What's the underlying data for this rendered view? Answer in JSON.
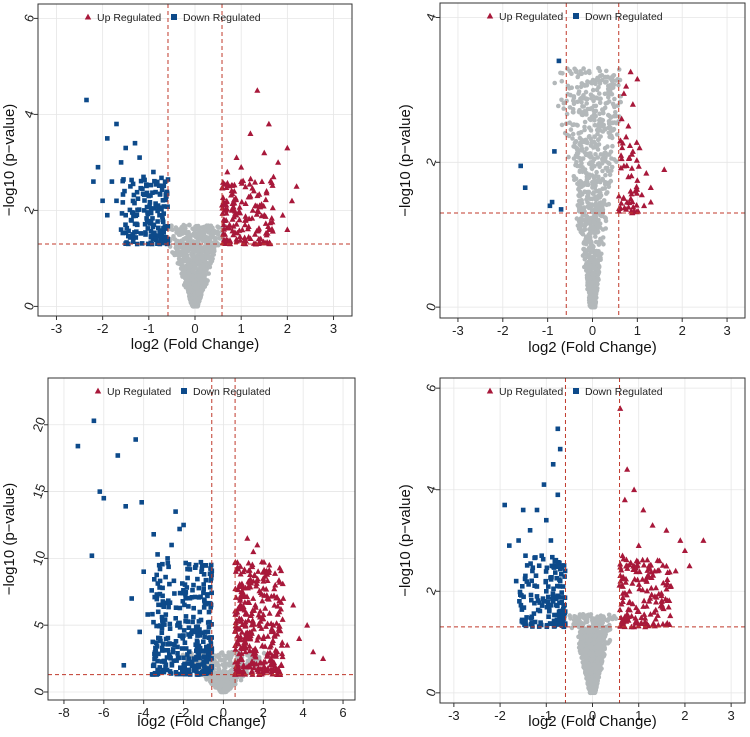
{
  "legend": {
    "up_label": "Up Regulated",
    "down_label": "Down Regulated"
  },
  "colors": {
    "up": "#a8183a",
    "down": "#0d4a8a",
    "ns": "#b3b8ba",
    "threshold": "#c0392b",
    "grid": "#e6e6e6"
  },
  "chart_data": [
    {
      "type": "scatter",
      "title": "",
      "xlabel": "log2 (Fold Change)",
      "ylabel": "−log10 (p−value)",
      "xlim": [
        -3.4,
        3.4
      ],
      "ylim": [
        -0.2,
        6.3
      ],
      "xticks": [
        -3,
        -2,
        -1,
        0,
        1,
        2,
        3
      ],
      "yticks": [
        0,
        2,
        4,
        6
      ],
      "fc_threshold": 0.585,
      "p_threshold": 1.3,
      "legend_position": "top",
      "series": [
        {
          "name": "Up Regulated",
          "points": [
            [
              1.35,
              4.5
            ],
            [
              1.6,
              3.8
            ],
            [
              2.0,
              3.3
            ],
            [
              1.2,
              3.6
            ],
            [
              1.8,
              3.0
            ],
            [
              2.2,
              2.5
            ],
            [
              1.5,
              3.2
            ],
            [
              0.9,
              3.1
            ],
            [
              1.7,
              2.7
            ],
            [
              2.1,
              2.2
            ],
            [
              1.0,
              2.6
            ],
            [
              0.7,
              2.8
            ],
            [
              1.2,
              2.3
            ],
            [
              1.9,
              1.9
            ],
            [
              1.4,
              2.1
            ],
            [
              0.8,
              2.0
            ],
            [
              1.1,
              1.8
            ],
            [
              1.6,
              1.6
            ],
            [
              0.65,
              1.5
            ],
            [
              0.75,
              1.7
            ],
            [
              1.3,
              1.5
            ],
            [
              0.9,
              1.4
            ],
            [
              2.0,
              1.6
            ],
            [
              1.5,
              1.9
            ],
            [
              1.0,
              2.9
            ],
            [
              1.25,
              2.0
            ],
            [
              0.85,
              2.4
            ],
            [
              1.45,
              2.6
            ]
          ]
        },
        {
          "name": "Down Regulated",
          "points": [
            [
              -2.35,
              4.3
            ],
            [
              -1.7,
              3.8
            ],
            [
              -1.9,
              3.5
            ],
            [
              -1.5,
              3.3
            ],
            [
              -1.3,
              3.4
            ],
            [
              -1.6,
              3.0
            ],
            [
              -2.1,
              2.9
            ],
            [
              -1.2,
              3.1
            ],
            [
              -0.9,
              2.8
            ],
            [
              -1.8,
              2.6
            ],
            [
              -2.2,
              2.6
            ],
            [
              -1.4,
              2.5
            ],
            [
              -1.0,
              2.3
            ],
            [
              -1.7,
              2.2
            ],
            [
              -1.1,
              2.0
            ],
            [
              -0.8,
              2.1
            ],
            [
              -1.5,
              1.9
            ],
            [
              -0.7,
              1.8
            ],
            [
              -1.25,
              1.7
            ],
            [
              -0.9,
              1.5
            ],
            [
              -1.9,
              1.9
            ],
            [
              -1.6,
              1.6
            ],
            [
              -0.65,
              1.4
            ],
            [
              -1.35,
              1.5
            ],
            [
              -2.0,
              2.2
            ]
          ]
        }
      ],
      "ns_cloud": {
        "spread": 0.42,
        "vmax": 1.7,
        "n": 850
      }
    },
    {
      "type": "scatter",
      "title": "",
      "xlabel": "log2 (Fold Change)",
      "ylabel": "−log10 (p−value)",
      "xlim": [
        -3.4,
        3.4
      ],
      "ylim": [
        -0.15,
        4.2
      ],
      "xticks": [
        -3,
        -2,
        -1,
        0,
        1,
        2,
        3
      ],
      "yticks": [
        0,
        2,
        4
      ],
      "fc_threshold": 0.585,
      "p_threshold": 1.3,
      "legend_position": "top",
      "series": [
        {
          "name": "Up Regulated",
          "points": [
            [
              0.85,
              3.25
            ],
            [
              1.0,
              3.15
            ],
            [
              0.7,
              2.95
            ],
            [
              0.65,
              2.6
            ],
            [
              0.75,
              2.35
            ],
            [
              0.9,
              2.15
            ],
            [
              1.05,
              2.2
            ],
            [
              0.7,
              1.95
            ],
            [
              0.8,
              1.8
            ],
            [
              1.2,
              1.85
            ],
            [
              1.6,
              1.9
            ],
            [
              0.95,
              1.6
            ],
            [
              0.7,
              1.5
            ],
            [
              1.1,
              1.55
            ],
            [
              1.3,
              1.45
            ],
            [
              0.75,
              1.35
            ],
            [
              0.85,
              1.6
            ],
            [
              1.0,
              1.75
            ],
            [
              1.3,
              1.65
            ],
            [
              0.65,
              2.05
            ],
            [
              0.8,
              2.5
            ],
            [
              1.15,
              1.4
            ],
            [
              0.9,
              2.8
            ],
            [
              0.75,
              3.05
            ]
          ]
        },
        {
          "name": "Down Regulated",
          "points": [
            [
              -0.75,
              3.4
            ],
            [
              -0.85,
              2.15
            ],
            [
              -1.6,
              1.95
            ],
            [
              -1.5,
              1.65
            ],
            [
              -0.9,
              1.45
            ],
            [
              -0.95,
              1.4
            ],
            [
              -0.7,
              1.35
            ]
          ]
        }
      ],
      "ns_cloud": {
        "spread": 0.26,
        "vmax": 3.3,
        "n": 900
      }
    },
    {
      "type": "scatter",
      "title": "",
      "xlabel": "log2 (Fold Change)",
      "ylabel": "−log10 (p−value)",
      "xlim": [
        -8.8,
        6.6
      ],
      "ylim": [
        -0.6,
        23.5
      ],
      "xticks": [
        -8,
        -6,
        -4,
        -2,
        0,
        2,
        4,
        6
      ],
      "yticks": [
        0,
        5,
        10,
        15,
        20
      ],
      "fc_threshold": 0.585,
      "p_threshold": 1.3,
      "legend_position": "top",
      "series": [
        {
          "name": "Up Regulated",
          "points": [
            [
              1.2,
              11.5
            ],
            [
              1.7,
              11.0
            ],
            [
              1.5,
              10.5
            ],
            [
              2.3,
              9.5
            ],
            [
              2.0,
              8.5
            ],
            [
              1.0,
              9.0
            ],
            [
              2.6,
              8.0
            ],
            [
              3.0,
              7.0
            ],
            [
              2.2,
              7.0
            ],
            [
              3.5,
              6.5
            ],
            [
              4.2,
              5.0
            ],
            [
              5.0,
              2.5
            ],
            [
              2.8,
              6.0
            ],
            [
              1.3,
              8.0
            ],
            [
              3.8,
              4.0
            ],
            [
              2.5,
              5.0
            ],
            [
              1.6,
              6.5
            ],
            [
              0.9,
              7.5
            ],
            [
              3.2,
              3.5
            ],
            [
              4.5,
              3.0
            ],
            [
              2.0,
              4.0
            ],
            [
              1.4,
              4.5
            ],
            [
              2.7,
              3.0
            ],
            [
              1.1,
              3.0
            ],
            [
              0.8,
              5.5
            ]
          ]
        },
        {
          "name": "Down Regulated",
          "points": [
            [
              -6.5,
              20.3
            ],
            [
              -7.3,
              18.4
            ],
            [
              -4.4,
              18.9
            ],
            [
              -5.3,
              17.7
            ],
            [
              -6.2,
              15.0
            ],
            [
              -6.0,
              14.5
            ],
            [
              -4.9,
              13.9
            ],
            [
              -4.1,
              14.2
            ],
            [
              -2.4,
              13.5
            ],
            [
              -2.0,
              12.5
            ],
            [
              -2.2,
              12.2
            ],
            [
              -3.5,
              11.8
            ],
            [
              -6.6,
              10.2
            ],
            [
              -3.3,
              10.3
            ],
            [
              -4.0,
              9.0
            ],
            [
              -2.9,
              8.6
            ],
            [
              -4.6,
              7.0
            ],
            [
              -3.8,
              5.8
            ],
            [
              -5.0,
              2.0
            ],
            [
              -4.2,
              4.5
            ],
            [
              -3.0,
              6.5
            ],
            [
              -1.8,
              9.2
            ],
            [
              -2.6,
              11.0
            ],
            [
              -1.5,
              8.0
            ],
            [
              -3.6,
              7.6
            ],
            [
              -2.8,
              10.0
            ]
          ]
        }
      ],
      "ns_cloud": {
        "spread": 0.9,
        "vmax": 3.0,
        "n": 500
      }
    },
    {
      "type": "scatter",
      "title": "",
      "xlabel": "log2 (Fold Change)",
      "ylabel": "−log10 (p−value)",
      "xlim": [
        -3.3,
        3.3
      ],
      "ylim": [
        -0.2,
        6.2
      ],
      "xticks": [
        -3,
        -2,
        -1,
        0,
        1,
        2,
        3
      ],
      "yticks": [
        0,
        2,
        4,
        6
      ],
      "fc_threshold": 0.585,
      "p_threshold": 1.3,
      "legend_position": "top",
      "series": [
        {
          "name": "Up Regulated",
          "points": [
            [
              0.6,
              5.6
            ],
            [
              0.75,
              4.4
            ],
            [
              0.9,
              4.0
            ],
            [
              1.1,
              3.6
            ],
            [
              1.3,
              3.3
            ],
            [
              1.6,
              3.2
            ],
            [
              1.9,
              3.0
            ],
            [
              2.4,
              3.0
            ],
            [
              2.0,
              2.8
            ],
            [
              1.45,
              2.6
            ],
            [
              1.0,
              2.9
            ],
            [
              0.7,
              3.8
            ],
            [
              1.2,
              2.3
            ],
            [
              1.7,
              2.1
            ],
            [
              0.8,
              2.0
            ],
            [
              1.0,
              1.6
            ],
            [
              0.7,
              1.5
            ],
            [
              1.35,
              1.9
            ],
            [
              0.9,
              2.5
            ],
            [
              1.8,
              2.4
            ],
            [
              1.5,
              1.8
            ],
            [
              0.65,
              2.7
            ],
            [
              1.1,
              1.7
            ],
            [
              2.1,
              2.5
            ]
          ]
        },
        {
          "name": "Down Regulated",
          "points": [
            [
              -0.75,
              5.2
            ],
            [
              -0.7,
              4.8
            ],
            [
              -0.85,
              4.5
            ],
            [
              -1.9,
              3.7
            ],
            [
              -1.5,
              3.6
            ],
            [
              -1.2,
              3.6
            ],
            [
              -1.0,
              3.4
            ],
            [
              -1.35,
              3.2
            ],
            [
              -0.9,
              3.0
            ],
            [
              -1.6,
              3.0
            ],
            [
              -1.8,
              2.9
            ],
            [
              -1.1,
              2.7
            ],
            [
              -0.8,
              2.5
            ],
            [
              -1.3,
              2.4
            ],
            [
              -0.7,
              2.2
            ],
            [
              -1.0,
              2.0
            ],
            [
              -1.2,
              1.9
            ],
            [
              -0.85,
              1.8
            ],
            [
              -0.65,
              1.6
            ],
            [
              -0.95,
              1.5
            ],
            [
              -1.45,
              2.7
            ],
            [
              -1.05,
              4.1
            ],
            [
              -0.75,
              3.9
            ],
            [
              -1.65,
              2.2
            ]
          ]
        }
      ],
      "ns_cloud": {
        "spread": 0.32,
        "vmax": 1.55,
        "n": 900
      }
    }
  ]
}
